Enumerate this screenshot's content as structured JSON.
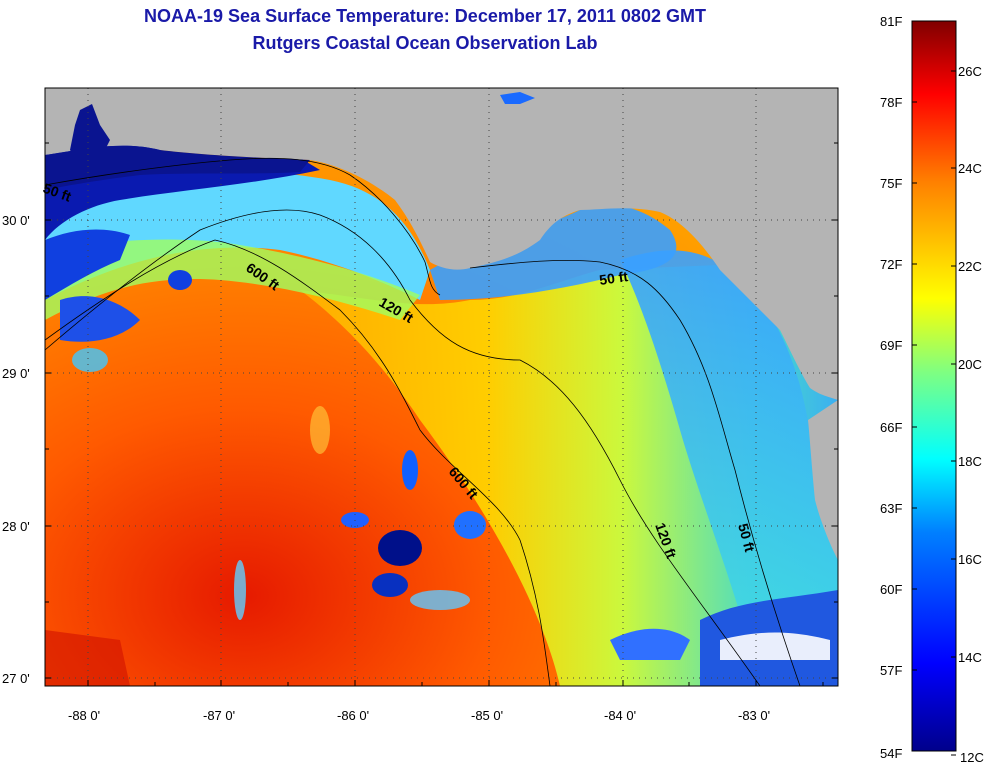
{
  "title": {
    "line1": "NOAA-19 Sea Surface Temperature:  December 17, 2011 0802 GMT",
    "line2": "Rutgers Coastal Ocean Observation Lab"
  },
  "axes": {
    "x_ticks": [
      "-88 0'",
      "-87 0'",
      "-86 0'",
      "-85 0'",
      "-84 0'",
      "-83 0'"
    ],
    "y_ticks": [
      "30 0'",
      "29 0'",
      "28 0'",
      "27 0'"
    ]
  },
  "contours": [
    {
      "label": "50 ft"
    },
    {
      "label": "600 ft"
    },
    {
      "label": "120 ft"
    },
    {
      "label": "50 ft"
    },
    {
      "label": "600 ft"
    },
    {
      "label": "120 ft"
    },
    {
      "label": "50 ft"
    }
  ],
  "colorbar": {
    "fahrenheit": [
      "81F",
      "78F",
      "75F",
      "72F",
      "69F",
      "66F",
      "63F",
      "60F",
      "57F",
      "54F"
    ],
    "celsius": [
      "26C",
      "24C",
      "22C",
      "20C",
      "18C",
      "16C",
      "14C",
      "12C"
    ]
  },
  "colors": {
    "land": "#b4b4b4",
    "title": "#1a1aa8",
    "colormap": [
      "#00008b",
      "#0000ff",
      "#0080ff",
      "#00ffff",
      "#80ff80",
      "#ffff00",
      "#ff8000",
      "#ff0000",
      "#800000"
    ]
  }
}
